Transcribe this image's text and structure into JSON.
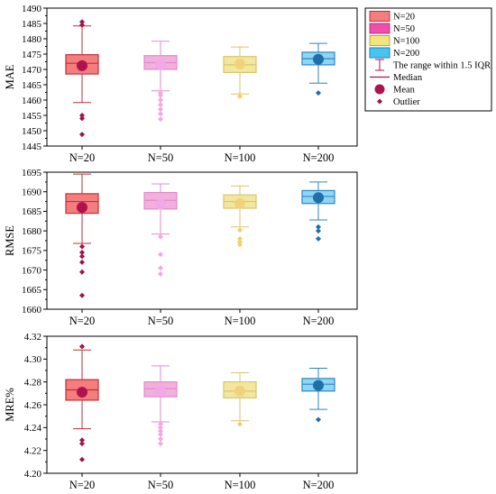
{
  "legend": {
    "entries": [
      {
        "label": "N=20",
        "kind": "box",
        "fill": "#f47d7d",
        "stroke": "#c0303a"
      },
      {
        "label": "N=50",
        "kind": "box",
        "fill": "#ef4fa8",
        "stroke": "#c0307a"
      },
      {
        "label": "N=100",
        "kind": "box",
        "fill": "#f1e57c",
        "stroke": "#b8a83a"
      },
      {
        "label": "N=200",
        "kind": "box",
        "fill": "#45c6f2",
        "stroke": "#1f7fb8"
      },
      {
        "label": "The range within 1.5 IQR",
        "kind": "whisker"
      },
      {
        "label": "Median",
        "kind": "median"
      },
      {
        "label": "Mean",
        "kind": "mean"
      },
      {
        "label": "Outlier",
        "kind": "outlier"
      }
    ]
  },
  "colors": {
    "N=20": {
      "fill": "#f47d7d",
      "stroke": "#c0303a",
      "mean": "#b0124f",
      "outlier": "#a0124a"
    },
    "N=50": {
      "fill": "#f2b0dc",
      "stroke": "#e08ccc",
      "mean": "#f2a8e4",
      "outlier": "#f2a8e4"
    },
    "N=100": {
      "fill": "#f3e7a0",
      "stroke": "#d8c56a",
      "mean": "#f1d27a",
      "outlier": "#efcf6e"
    },
    "N=200": {
      "fill": "#8fd6f4",
      "stroke": "#2c86c0",
      "mean": "#1f6fa8",
      "outlier": "#1f6fa8"
    }
  },
  "chart_data": [
    {
      "type": "box",
      "ylabel": "MAE",
      "ylim": [
        1445,
        1490
      ],
      "yticks": [
        1445,
        1450,
        1455,
        1460,
        1465,
        1470,
        1475,
        1480,
        1485,
        1490
      ],
      "categories": [
        "N=20",
        "N=50",
        "N=100",
        "N=200"
      ],
      "boxes": [
        {
          "name": "N=20",
          "whisker_low": 1459.2,
          "q1": 1468.5,
          "median": 1472.0,
          "q3": 1474.8,
          "whisker_high": 1484.2,
          "mean": 1471.2,
          "outliers": [
            1448.8,
            1454.0,
            1455.0,
            1484.5,
            1485.5
          ]
        },
        {
          "name": "N=50",
          "whisker_low": 1463.0,
          "q1": 1470.0,
          "median": 1472.2,
          "q3": 1474.5,
          "whisker_high": 1479.2,
          "mean": 1471.5,
          "outliers": [
            1453.8,
            1455.5,
            1457.0,
            1458.5,
            1460.0,
            1461.5,
            1462.3
          ]
        },
        {
          "name": "N=100",
          "whisker_low": 1462.0,
          "q1": 1469.0,
          "median": 1471.5,
          "q3": 1474.2,
          "whisker_high": 1477.3,
          "mean": 1471.8,
          "outliers": [
            1461.2
          ]
        },
        {
          "name": "N=200",
          "whisker_low": 1465.5,
          "q1": 1471.5,
          "median": 1473.5,
          "q3": 1475.6,
          "whisker_high": 1478.5,
          "mean": 1473.3,
          "outliers": [
            1462.3
          ]
        }
      ]
    },
    {
      "type": "box",
      "ylabel": "RMSE",
      "ylim": [
        1660,
        1695
      ],
      "yticks": [
        1660,
        1665,
        1670,
        1675,
        1680,
        1685,
        1690,
        1695
      ],
      "categories": [
        "N=20",
        "N=50",
        "N=100",
        "N=200"
      ],
      "boxes": [
        {
          "name": "N=20",
          "whisker_low": 1676.8,
          "q1": 1684.5,
          "median": 1687.5,
          "q3": 1689.5,
          "whisker_high": 1694.5,
          "mean": 1686.0,
          "outliers": [
            1663.5,
            1669.5,
            1672.0,
            1673.5,
            1674.5,
            1676.0
          ]
        },
        {
          "name": "N=50",
          "whisker_low": 1679.2,
          "q1": 1685.6,
          "median": 1687.8,
          "q3": 1689.8,
          "whisker_high": 1692.0,
          "mean": 1686.8,
          "outliers": [
            1669.0,
            1670.5,
            1674.0,
            1678.5
          ]
        },
        {
          "name": "N=100",
          "whisker_low": 1681.0,
          "q1": 1685.8,
          "median": 1687.5,
          "q3": 1689.2,
          "whisker_high": 1691.5,
          "mean": 1687.0,
          "outliers": [
            1676.5,
            1677.2,
            1678.0,
            1680.2
          ]
        },
        {
          "name": "N=200",
          "whisker_low": 1682.8,
          "q1": 1687.0,
          "median": 1688.8,
          "q3": 1690.3,
          "whisker_high": 1692.5,
          "mean": 1688.5,
          "outliers": [
            1678.0,
            1680.0,
            1681.0
          ]
        }
      ]
    },
    {
      "type": "box",
      "ylabel": "MRE%",
      "ylim": [
        4.2,
        4.32
      ],
      "yticks": [
        "4.20",
        "4.22",
        "4.24",
        "4.26",
        "4.28",
        "4.30",
        "4.32"
      ],
      "categories": [
        "N=20",
        "N=50",
        "N=100",
        "N=200"
      ],
      "boxes": [
        {
          "name": "N=20",
          "whisker_low": 4.239,
          "q1": 4.264,
          "median": 4.273,
          "q3": 4.282,
          "whisker_high": 4.308,
          "mean": 4.271,
          "outliers": [
            4.212,
            4.226,
            4.229,
            4.311
          ]
        },
        {
          "name": "N=50",
          "whisker_low": 4.245,
          "q1": 4.267,
          "median": 4.274,
          "q3": 4.28,
          "whisker_high": 4.294,
          "mean": 4.272,
          "outliers": [
            4.226,
            4.23,
            4.234,
            4.237,
            4.24,
            4.243
          ]
        },
        {
          "name": "N=100",
          "whisker_low": 4.246,
          "q1": 4.266,
          "median": 4.272,
          "q3": 4.28,
          "whisker_high": 4.288,
          "mean": 4.272,
          "outliers": [
            4.243
          ]
        },
        {
          "name": "N=200",
          "whisker_low": 4.256,
          "q1": 4.272,
          "median": 4.278,
          "q3": 4.283,
          "whisker_high": 4.292,
          "mean": 4.277,
          "outliers": [
            4.247
          ]
        }
      ]
    }
  ]
}
